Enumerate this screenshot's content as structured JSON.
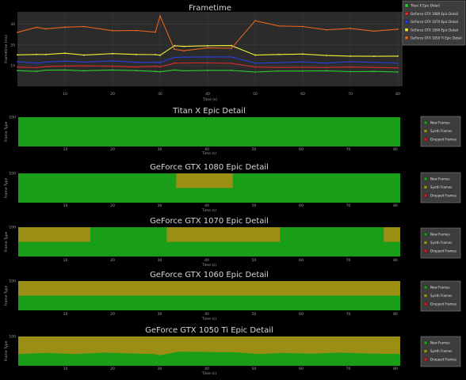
{
  "colors": {
    "background": "#000000",
    "plot_bg": "#2b2b2b",
    "new_frames": "#1a9e1a",
    "synth_frames": "#9a8f14",
    "dropped_frames": "#c62020",
    "titan": "#2ecc2e",
    "gtx1080": "#e02a2a",
    "gtx1070": "#2a3fe0",
    "gtx1060": "#f2f23a",
    "gtx1050ti": "#e8641e"
  },
  "chart_data": [
    {
      "type": "line",
      "title": "Frametime",
      "xlabel": "Time (s)",
      "ylabel": "Frametime (ms)",
      "xlim": [
        0,
        81
      ],
      "ylim": [
        0,
        36
      ],
      "x_ticks": [
        10,
        20,
        30,
        40,
        50,
        60,
        70,
        80
      ],
      "y_ticks": [
        10,
        20,
        30
      ],
      "legend_position": "top-right",
      "series": [
        {
          "name": "Titan X Epic Detail",
          "color_key": "titan",
          "x": [
            0,
            4,
            6,
            10,
            14,
            20,
            25,
            29,
            30,
            33,
            35,
            40,
            45,
            50,
            55,
            60,
            65,
            70,
            75,
            80
          ],
          "y": [
            7.6,
            7.2,
            7.8,
            7.9,
            7.5,
            7.9,
            7.6,
            7.2,
            7.0,
            7.9,
            7.5,
            7.7,
            7.7,
            6.9,
            7.4,
            7.4,
            7.5,
            7.1,
            7.2,
            6.9
          ]
        },
        {
          "name": "GeForce GTX 1080 Epic Detail",
          "color_key": "gtx1080",
          "x": [
            0,
            4,
            6,
            10,
            14,
            20,
            25,
            29,
            30,
            33,
            35,
            40,
            45,
            50,
            55,
            60,
            65,
            70,
            75,
            80
          ],
          "y": [
            9.3,
            9.0,
            9.5,
            9.8,
            9.9,
            9.7,
            9.3,
            9.7,
            9.4,
            11.2,
            11.3,
            11.3,
            11.1,
            9.3,
            9.1,
            9.2,
            9.1,
            9.3,
            9.1,
            8.9
          ]
        },
        {
          "name": "GeForce GTX 1070 Epic Detail",
          "color_key": "gtx1070",
          "x": [
            0,
            4,
            6,
            10,
            14,
            20,
            25,
            29,
            30,
            33,
            35,
            40,
            45,
            50,
            55,
            60,
            65,
            70,
            75,
            80
          ],
          "y": [
            11.9,
            11.2,
            11.7,
            12.2,
            11.7,
            12.3,
            11.6,
            11.6,
            11.4,
            14.0,
            14.1,
            14.2,
            14.2,
            11.2,
            11.4,
            11.8,
            11.2,
            11.9,
            11.6,
            11.1
          ]
        },
        {
          "name": "GeForce GTX 1060 Epic Detail",
          "color_key": "gtx1060",
          "x": [
            0,
            4,
            6,
            10,
            14,
            20,
            25,
            29,
            30,
            33,
            35,
            40,
            45,
            50,
            55,
            60,
            65,
            70,
            75,
            80
          ],
          "y": [
            15.2,
            15.4,
            15.4,
            16.0,
            15.1,
            15.8,
            15.4,
            15.3,
            15.0,
            19.6,
            19.3,
            19.6,
            19.7,
            15.1,
            15.4,
            15.6,
            14.9,
            14.6,
            14.5,
            14.6
          ]
        },
        {
          "name": "GeForce GTX 1050 Ti Epic Detail",
          "color_key": "gtx1050ti",
          "x": [
            0,
            4,
            6,
            10,
            14,
            20,
            25,
            29,
            30,
            33,
            35,
            40,
            45,
            50,
            55,
            60,
            65,
            70,
            75,
            80
          ],
          "y": [
            26.1,
            28.5,
            27.8,
            28.6,
            28.9,
            26.9,
            27.0,
            26.2,
            34.0,
            17.9,
            17.2,
            18.6,
            18.4,
            31.7,
            29.2,
            28.9,
            27.3,
            28.0,
            26.7,
            27.6
          ]
        }
      ]
    },
    {
      "type": "area",
      "title": "Titan X Epic Detail",
      "xlabel": "Time (s)",
      "ylabel": "Frame Type",
      "xlim": [
        0,
        81
      ],
      "ylim": [
        0,
        100
      ],
      "x_ticks": [
        10,
        20,
        30,
        40,
        50,
        60,
        70,
        80
      ],
      "y_ticks": [
        100
      ],
      "legend": [
        "New Frames",
        "Synth Frames",
        "Dropped Frames"
      ],
      "legend_position": "right",
      "new_frames_percent": {
        "x": [
          0,
          81
        ],
        "y": [
          100,
          100
        ]
      }
    },
    {
      "type": "area",
      "title": "GeForce GTX 1080 Epic Detail",
      "xlabel": "Time (s)",
      "ylabel": "Frame Type",
      "xlim": [
        0,
        81
      ],
      "ylim": [
        0,
        100
      ],
      "x_ticks": [
        10,
        20,
        30,
        40,
        50,
        60,
        70,
        80
      ],
      "y_ticks": [
        100
      ],
      "legend": [
        "New Frames",
        "Synth Frames",
        "Dropped Frames"
      ],
      "legend_position": "right",
      "new_frames_percent": {
        "x": [
          0,
          33.5,
          33.5,
          45.5,
          45.5,
          81
        ],
        "y": [
          100,
          100,
          50,
          50,
          100,
          100
        ]
      }
    },
    {
      "type": "area",
      "title": "GeForce GTX 1070 Epic Detail",
      "xlabel": "Time (s)",
      "ylabel": "Frame Type",
      "xlim": [
        0,
        81
      ],
      "ylim": [
        0,
        100
      ],
      "x_ticks": [
        10,
        20,
        30,
        40,
        50,
        60,
        70,
        80
      ],
      "y_ticks": [
        100
      ],
      "legend": [
        "New Frames",
        "Synth Frames",
        "Dropped Frames"
      ],
      "legend_position": "right",
      "new_frames_percent": {
        "x": [
          0,
          15.3,
          15.3,
          31.5,
          31.5,
          55.5,
          55.5,
          77.5,
          77.5,
          81
        ],
        "y": [
          50,
          50,
          100,
          100,
          50,
          50,
          100,
          100,
          50,
          50
        ]
      }
    },
    {
      "type": "area",
      "title": "GeForce GTX 1060 Epic Detail",
      "xlabel": "Time (s)",
      "ylabel": "Frame Type",
      "xlim": [
        0,
        81
      ],
      "ylim": [
        0,
        100
      ],
      "x_ticks": [
        10,
        20,
        30,
        40,
        50,
        60,
        70,
        80
      ],
      "y_ticks": [
        100
      ],
      "legend": [
        "New Frames",
        "Synth Frames",
        "Dropped Frames"
      ],
      "legend_position": "right",
      "new_frames_percent": {
        "x": [
          0,
          81
        ],
        "y": [
          50,
          50
        ]
      }
    },
    {
      "type": "area",
      "title": "GeForce GTX 1050 Ti Epic Detail",
      "xlabel": "Time (s)",
      "ylabel": "Frame Type",
      "xlim": [
        0,
        81
      ],
      "ylim": [
        0,
        100
      ],
      "x_ticks": [
        10,
        20,
        30,
        40,
        50,
        60,
        70,
        80
      ],
      "y_ticks": [
        100
      ],
      "legend": [
        "New Frames",
        "Synth Frames",
        "Dropped Frames"
      ],
      "legend_position": "right",
      "new_frames_percent": {
        "x": [
          0,
          6,
          12,
          18,
          24,
          29,
          30,
          34,
          40,
          46,
          51,
          56,
          62,
          68,
          74,
          81
        ],
        "y": [
          40,
          44,
          40,
          45,
          42,
          40,
          36,
          48,
          47,
          46,
          40,
          44,
          41,
          45,
          42,
          40
        ]
      }
    }
  ]
}
